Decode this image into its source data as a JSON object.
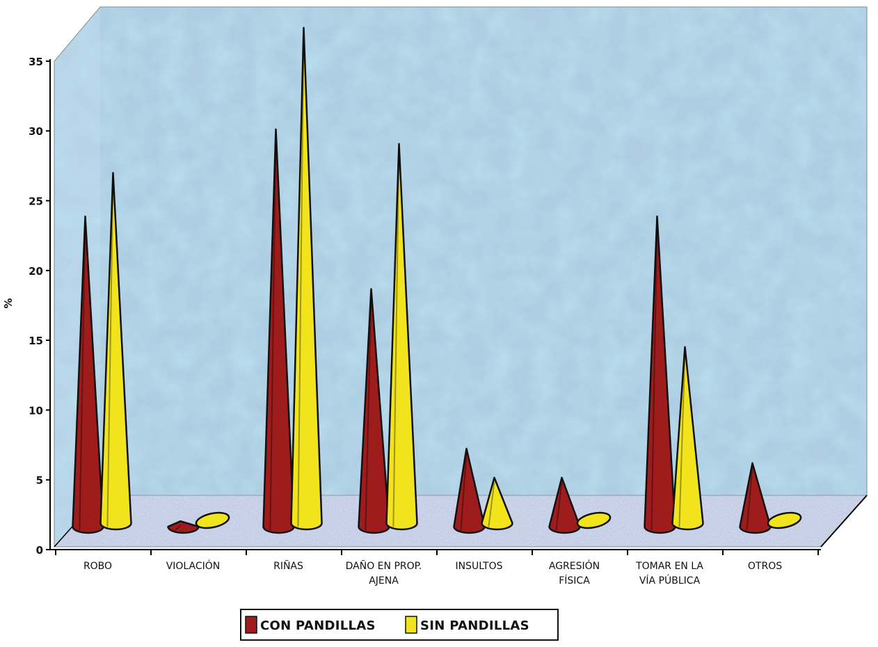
{
  "chart_data": {
    "type": "bar",
    "style": "3d-cone",
    "categories": [
      "ROBO",
      "VIOLACIÓN",
      "RIÑAS",
      "DAÑO EN PROP. AJENA",
      "INSULTOS",
      "AGRESIÓN FÍSICA",
      "TOMAR  EN LA VÍA PÚBLICA",
      "OTROS"
    ],
    "category_lines": [
      [
        "ROBO"
      ],
      [
        "VIOLACIÓN"
      ],
      [
        "RIÑAS"
      ],
      [
        "DAÑO EN PROP.",
        "AJENA"
      ],
      [
        "INSULTOS"
      ],
      [
        "AGRESIÓN",
        "FÍSICA"
      ],
      [
        "TOMAR  EN LA",
        "VÍA PÚBLICA"
      ],
      [
        "OTROS"
      ]
    ],
    "series": [
      {
        "name": "CON PANDILLAS",
        "color": "#9e1c1c",
        "values": [
          22,
          1,
          28,
          17,
          6,
          4,
          22,
          5
        ]
      },
      {
        "name": "SIN PANDILLAS",
        "color": "#f2e41c",
        "values": [
          25,
          0,
          35,
          27,
          4,
          0,
          13,
          0
        ]
      }
    ],
    "y_ticks": [
      "0",
      "5",
      "10",
      "15",
      "20",
      "25",
      "30",
      "35"
    ],
    "ylim": [
      0,
      35
    ],
    "ylabel": "%",
    "xlabel": "",
    "legend_position": "bottom",
    "background": "blue-textured"
  }
}
